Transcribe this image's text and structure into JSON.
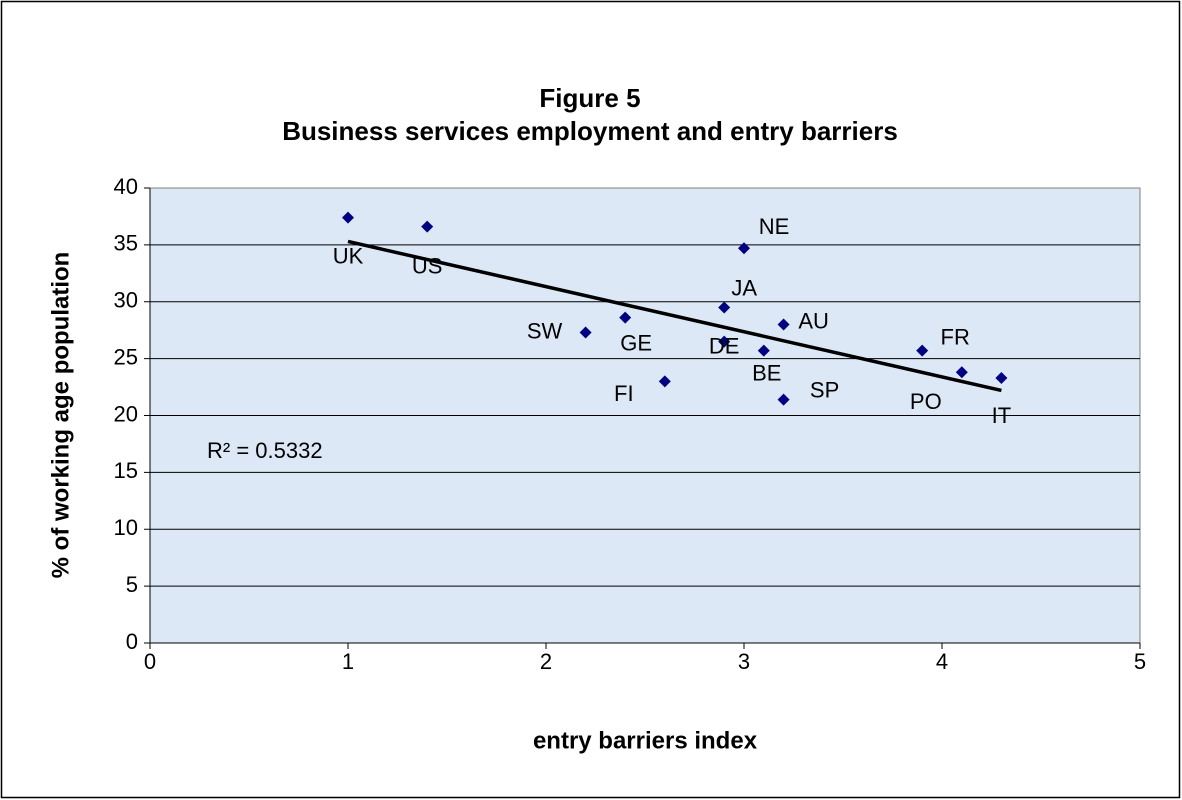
{
  "chart_data": {
    "type": "scatter",
    "title": "Figure 5",
    "subtitle": "Business services employment and entry barriers",
    "x_label": "entry barriers index",
    "y_label": "% of working age population",
    "labels": [
      "UK",
      "US",
      "NE",
      "JA",
      "AU",
      "SW",
      "GE",
      "DE",
      "BE",
      "FR",
      "PO",
      "IT",
      "FI",
      "SP"
    ],
    "x": [
      1.0,
      1.4,
      3.0,
      2.9,
      3.2,
      2.2,
      2.4,
      2.9,
      3.1,
      3.9,
      4.1,
      4.3,
      2.6,
      3.2
    ],
    "y": [
      37.4,
      36.6,
      34.7,
      29.5,
      28.0,
      27.3,
      28.6,
      26.5,
      25.7,
      25.7,
      23.8,
      23.3,
      23.0,
      21.4
    ],
    "color": "#000080",
    "trendline": {
      "x": [
        1.0,
        4.3
      ],
      "y": [
        35.3,
        22.2
      ],
      "color": "#000000"
    },
    "annotation": "R² = 0.5332",
    "xlim": [
      0,
      5
    ],
    "xticks": [
      0,
      1,
      2,
      3,
      4,
      5
    ],
    "ylim": [
      0,
      40
    ],
    "yticks": [
      0,
      5,
      10,
      15,
      20,
      25,
      30,
      35,
      40
    ],
    "grid": true
  }
}
